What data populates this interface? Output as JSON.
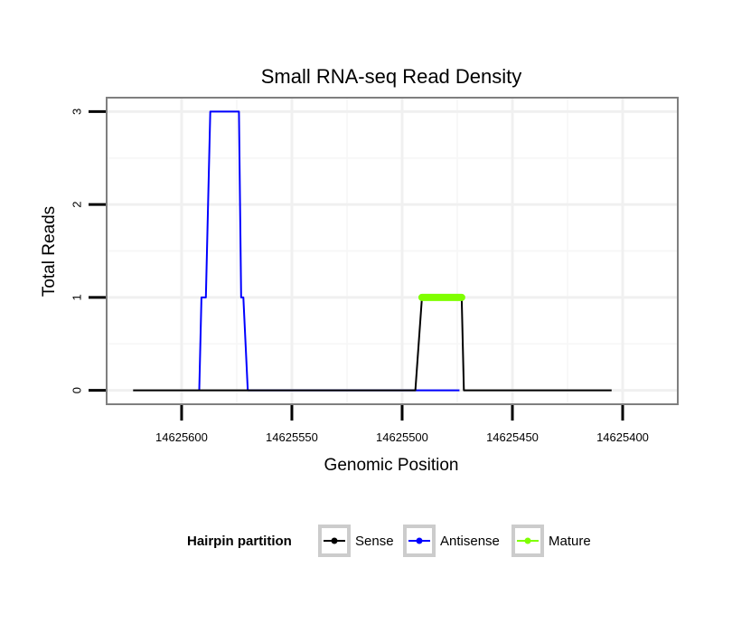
{
  "chart_data": {
    "type": "line",
    "title": "Small RNA-seq Read Density",
    "xlabel": "Genomic Position",
    "ylabel": "Total Reads",
    "x_reversed": true,
    "xlim": [
      14625634,
      14625375
    ],
    "ylim": [
      -0.15,
      3.15
    ],
    "x_ticks": [
      14625600,
      14625550,
      14625500,
      14625450,
      14625400
    ],
    "x_tick_labels": [
      "14625600",
      "14625550",
      "14625500",
      "14625450",
      "14625400"
    ],
    "y_ticks": [
      0,
      1,
      2,
      3
    ],
    "y_tick_labels": [
      "0",
      "1",
      "2",
      "3"
    ],
    "grid": true,
    "legend": {
      "title": "Hairpin partition",
      "position": "bottom",
      "entries": [
        "Sense",
        "Antisense",
        "Mature"
      ]
    },
    "series": [
      {
        "name": "Sense",
        "color": "#000000",
        "x": [
          14625622,
          14625494,
          14625491,
          14625485,
          14625475,
          14625473,
          14625472,
          14625405
        ],
        "y": [
          0,
          0,
          1,
          1,
          1,
          1,
          0,
          0
        ]
      },
      {
        "name": "Antisense",
        "color": "#0000ff",
        "x": [
          14625592,
          14625591,
          14625589,
          14625587,
          14625574,
          14625573,
          14625572,
          14625570,
          14625491,
          14625474
        ],
        "y": [
          0,
          1,
          1,
          3,
          3,
          1,
          1,
          0,
          0,
          0
        ]
      },
      {
        "name": "Mature",
        "color": "#7fff00",
        "x": [
          14625491,
          14625473
        ],
        "y": [
          1,
          1
        ]
      }
    ]
  }
}
